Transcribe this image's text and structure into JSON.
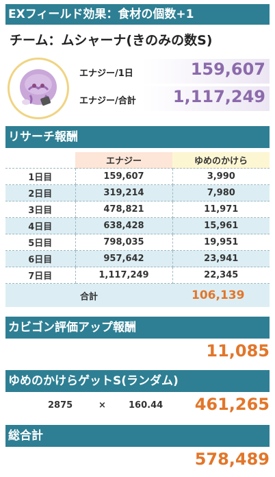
{
  "header": {
    "title": "EXフィールド効果：食材の個数+1"
  },
  "team": {
    "title": "チーム：ムシャーナ(きのみの数S)"
  },
  "energy": {
    "per_day_label": "エナジー/1日",
    "per_day_value": "159,607",
    "total_label": "エナジー/合計",
    "total_value": "1,117,249"
  },
  "research": {
    "title": "リサーチ報酬",
    "columns": [
      "エナジー",
      "ゆめのかけら"
    ],
    "rows": [
      {
        "day": "1日目",
        "energy": "159,607",
        "dream": "3,990"
      },
      {
        "day": "2日目",
        "energy": "319,214",
        "dream": "7,980"
      },
      {
        "day": "3日目",
        "energy": "478,821",
        "dream": "11,971"
      },
      {
        "day": "4日目",
        "energy": "638,428",
        "dream": "15,961"
      },
      {
        "day": "5日目",
        "energy": "798,035",
        "dream": "19,951"
      },
      {
        "day": "6日目",
        "energy": "957,642",
        "dream": "23,941"
      },
      {
        "day": "7日目",
        "energy": "1,117,249",
        "dream": "22,345"
      }
    ],
    "total_label": "合計",
    "total_value": "106,139"
  },
  "snorlax": {
    "title": "カビゴン評価アップ報酬",
    "value": "11,085"
  },
  "dream_get": {
    "title": "ゆめのかけらゲットS(ランダム)",
    "count": "2875",
    "operator": "×",
    "multiplier": "160.44",
    "value": "461,265"
  },
  "grand_total": {
    "title": "総合計",
    "value": "578,489"
  },
  "colors": {
    "band": "#2e7f93",
    "energy_text": "#8b6aab",
    "accent_orange": "#e2762a",
    "alt_row": "#dceef4"
  },
  "icons": {
    "avatar": "musharna-icon"
  }
}
